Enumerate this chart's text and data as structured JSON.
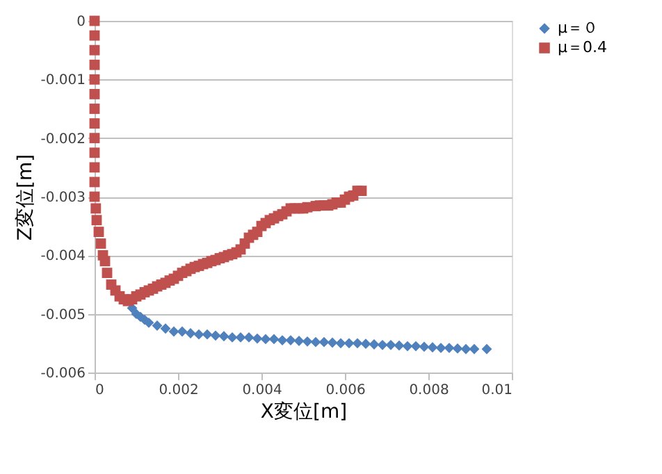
{
  "chart_data": {
    "type": "scatter",
    "xlabel": "X変位[m]",
    "ylabel": "Z変位[m]",
    "xlim": [
      0,
      0.01
    ],
    "xticks": [
      0,
      0.002,
      0.004,
      0.006,
      0.008,
      0.01
    ],
    "ylim": [
      -0.006,
      0
    ],
    "yticks": [
      -0.006,
      -0.005,
      -0.004,
      -0.003,
      -0.002,
      -0.001,
      0
    ],
    "grid": "y",
    "legend": "right",
    "series": [
      {
        "name": "μ＝０",
        "color": "#4f81bd",
        "marker": "diamond",
        "x": [
          0.0009,
          0.001,
          0.0011,
          0.0012,
          0.0013,
          0.0015,
          0.0017,
          0.0019,
          0.0021,
          0.0023,
          0.0025,
          0.0027,
          0.0029,
          0.0031,
          0.0033,
          0.0035,
          0.0037,
          0.0039,
          0.0041,
          0.0043,
          0.0045,
          0.0047,
          0.0049,
          0.0051,
          0.0053,
          0.0055,
          0.0057,
          0.0059,
          0.0061,
          0.0063,
          0.0065,
          0.0067,
          0.0069,
          0.0071,
          0.0073,
          0.0075,
          0.0077,
          0.0079,
          0.0081,
          0.0083,
          0.0085,
          0.0087,
          0.0089,
          0.0091,
          0.0094
        ],
        "values": [
          -0.0049,
          -0.005,
          -0.00505,
          -0.0051,
          -0.00515,
          -0.0052,
          -0.00525,
          -0.0053,
          -0.0053,
          -0.00533,
          -0.00535,
          -0.00535,
          -0.00537,
          -0.00538,
          -0.0054,
          -0.0054,
          -0.0054,
          -0.00542,
          -0.00543,
          -0.00543,
          -0.00545,
          -0.00545,
          -0.00546,
          -0.00547,
          -0.00548,
          -0.00548,
          -0.00549,
          -0.0055,
          -0.0055,
          -0.0055,
          -0.00551,
          -0.00552,
          -0.00553,
          -0.00553,
          -0.00554,
          -0.00555,
          -0.00555,
          -0.00556,
          -0.00557,
          -0.00558,
          -0.00558,
          -0.00559,
          -0.0056,
          -0.0056,
          -0.0056
        ]
      },
      {
        "name": "μ＝0.4",
        "color": "#c0504d",
        "marker": "square",
        "x": [
          0,
          0,
          0,
          0,
          0,
          0,
          0,
          0,
          0,
          0,
          0,
          0,
          0,
          3e-05,
          5e-05,
          0.0001,
          0.00015,
          0.0002,
          0.00025,
          0.0003,
          0.0004,
          0.0005,
          0.0006,
          0.0007,
          0.0008,
          0.0009,
          0.001,
          0.0011,
          0.0012,
          0.0013,
          0.0014,
          0.0015,
          0.0016,
          0.0017,
          0.0018,
          0.0019,
          0.002,
          0.0021,
          0.0022,
          0.0023,
          0.0024,
          0.0025,
          0.0026,
          0.0027,
          0.0028,
          0.0029,
          0.003,
          0.0031,
          0.0032,
          0.0033,
          0.0034,
          0.0035,
          0.0036,
          0.0037,
          0.0038,
          0.0039,
          0.004,
          0.0041,
          0.0042,
          0.0043,
          0.0044,
          0.0045,
          0.0046,
          0.0047,
          0.0048,
          0.0049,
          0.005,
          0.0051,
          0.0053,
          0.0054,
          0.0055,
          0.0056,
          0.0057,
          0.0058,
          0.0059,
          0.006,
          0.0061,
          0.0062,
          0.0063,
          0.0064
        ],
        "values": [
          0,
          -0.00025,
          -0.0005,
          -0.00075,
          -0.001,
          -0.00125,
          -0.0015,
          -0.00175,
          -0.002,
          -0.00225,
          -0.0025,
          -0.00275,
          -0.003,
          -0.0032,
          -0.0034,
          -0.0036,
          -0.0038,
          -0.004,
          -0.0041,
          -0.0043,
          -0.0045,
          -0.0046,
          -0.0047,
          -0.00475,
          -0.00478,
          -0.00475,
          -0.0047,
          -0.00467,
          -0.00463,
          -0.0046,
          -0.00457,
          -0.00453,
          -0.0045,
          -0.00447,
          -0.00443,
          -0.0044,
          -0.00435,
          -0.0043,
          -0.00427,
          -0.00423,
          -0.0042,
          -0.00418,
          -0.00415,
          -0.00413,
          -0.0041,
          -0.00408,
          -0.00405,
          -0.00403,
          -0.004,
          -0.00398,
          -0.00395,
          -0.0039,
          -0.0038,
          -0.0037,
          -0.00365,
          -0.0036,
          -0.0035,
          -0.00345,
          -0.0034,
          -0.00337,
          -0.00333,
          -0.0033,
          -0.00325,
          -0.0032,
          -0.0032,
          -0.0032,
          -0.0032,
          -0.00318,
          -0.00316,
          -0.00315,
          -0.00315,
          -0.00315,
          -0.00313,
          -0.0031,
          -0.0031,
          -0.00305,
          -0.003,
          -0.00298,
          -0.0029,
          -0.0029
        ]
      }
    ]
  }
}
